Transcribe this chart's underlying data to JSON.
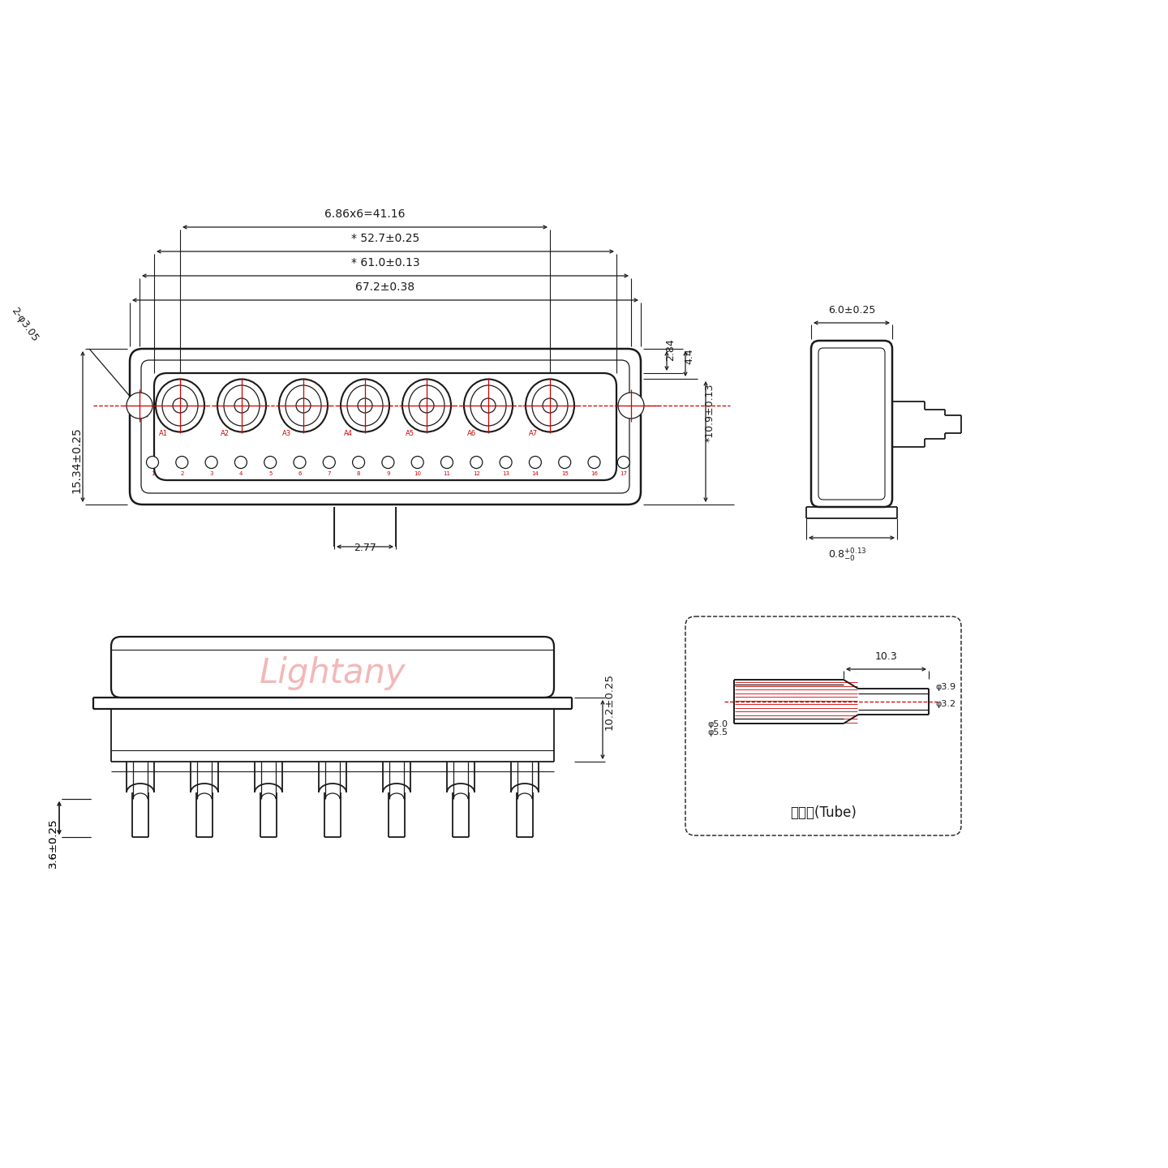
{
  "bg_color": "#ffffff",
  "line_color": "#1a1a1a",
  "red_color": "#cc0000",
  "watermark_color": "#f2b8b8",
  "dims": {
    "d1": "67.2±0.38",
    "d2": "* 61.0±0.13",
    "d3": "* 52.7±0.25",
    "d4": "6.86x6=41.16",
    "dh": "15.34±0.25",
    "hole": "2-φ3.05",
    "dr1": "2.84",
    "dr2": "4.4",
    "dr3": "*10.9±0.13",
    "dc": "2.77",
    "dsw": "6.0±0.25",
    "dsb": "0.8",
    "dsbt": "+0.13\n-0",
    "dbh": "10.2±0.25",
    "dfb": "3.6±0.25",
    "tl": "10.3",
    "td1": "φ3.9",
    "td2": "φ3.2",
    "th1": "φ5.0",
    "th2": "φ5.5",
    "tlabel": "屏蔽管(Tube)",
    "wm": "Lightany"
  }
}
